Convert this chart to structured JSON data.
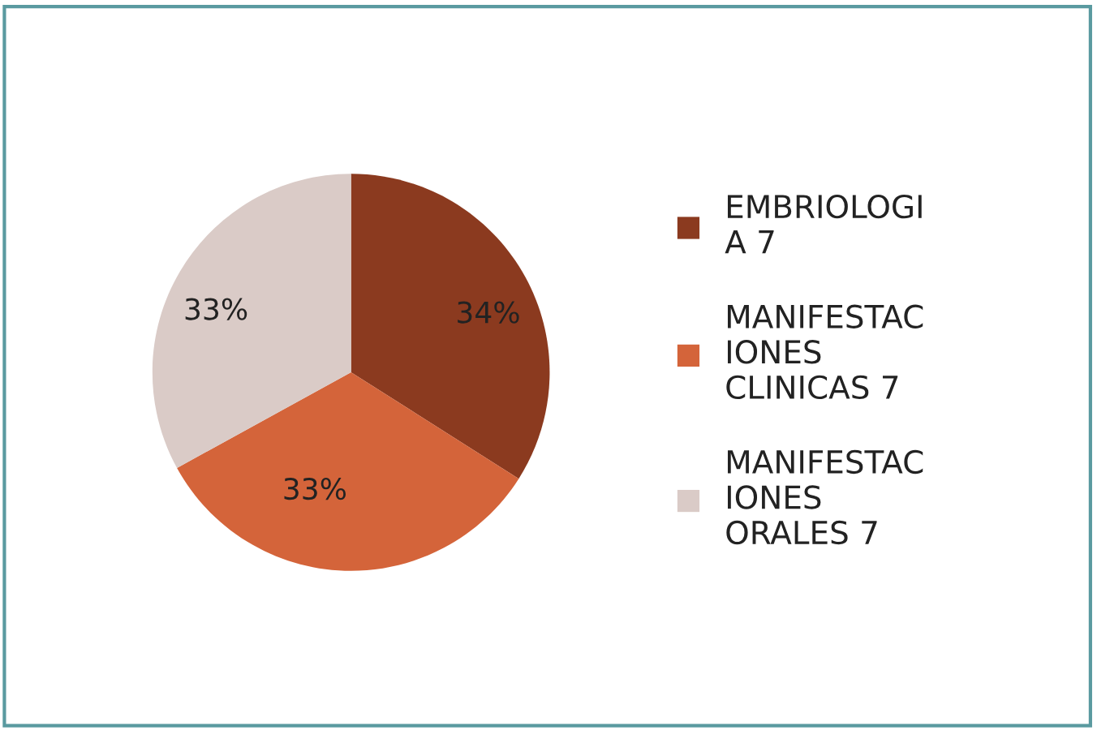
{
  "chart_data": {
    "type": "pie",
    "categories": [
      "EMBRIOLOGI\nA 7",
      "MANIFESTAC\nIONES\nCLINICAS 7",
      "MANIFESTAC\nIONES\nORALES 7"
    ],
    "values": [
      34,
      33,
      33
    ],
    "colors": [
      "#8b3a1f",
      "#d4643a",
      "#dacbc7"
    ],
    "value_labels": [
      "34%",
      "33%",
      "33%"
    ],
    "legend": "right"
  }
}
